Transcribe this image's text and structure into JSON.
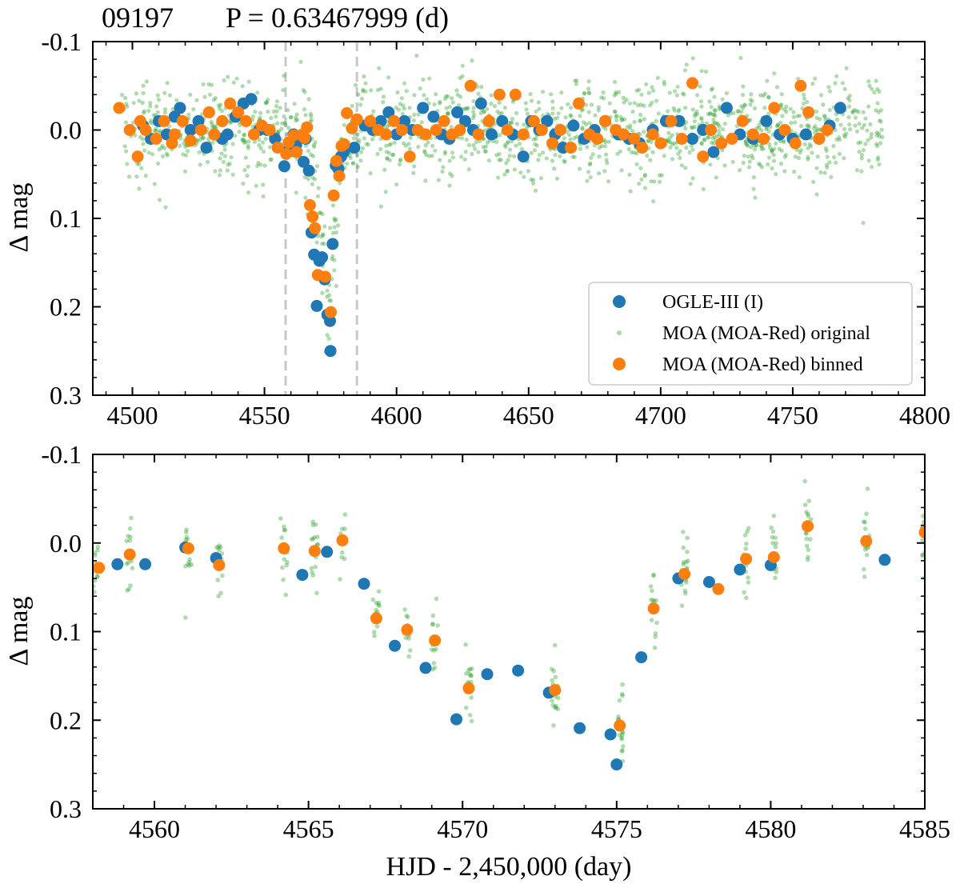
{
  "figure": {
    "title_id": "09197",
    "title_period": "P = 0.63467999 (d)"
  },
  "colors": {
    "ogle": "#1f77b4",
    "moa_original": "#2ca02c",
    "moa_binned": "#ff7f0e",
    "guide": "#c8c8c8"
  },
  "chart_data": [
    {
      "type": "scatter",
      "name": "full-range",
      "title": "09197     P = 0.63467999 (d)",
      "xlabel": "",
      "ylabel": "Δ mag",
      "xlim": [
        4485,
        4800
      ],
      "ylim": [
        -0.1,
        0.3
      ],
      "y_inverted": true,
      "xticks": [
        4500,
        4550,
        4600,
        4650,
        4700,
        4750,
        4800
      ],
      "xtick_labels": [
        "4500",
        "4550",
        "4600",
        "4650",
        "4700",
        "4750",
        "4800"
      ],
      "yticks": [
        -0.1,
        0.0,
        0.1,
        0.2,
        0.3
      ],
      "ytick_labels": [
        "-0.1",
        "0.0",
        "0.1",
        "0.2",
        "0.3"
      ],
      "guide_lines_x": [
        4558,
        4585
      ],
      "legend": {
        "position": "lower-right",
        "entries": [
          "OGLE-III (I)",
          "MOA (MOA-Red) original",
          "MOA (MOA-Red) binned"
        ]
      },
      "series": [
        {
          "name": "OGLE-III (I)",
          "color_key": "ogle",
          "x": [
            4504,
            4507,
            4510,
            4513,
            4516,
            4518,
            4522,
            4525,
            4528,
            4531,
            4534,
            4536,
            4539,
            4542,
            4545,
            4548,
            4551,
            4554,
            4557.5,
            4558.8,
            4559.7,
            4561,
            4562,
            4564.8,
            4565.6,
            4566.8,
            4567.8,
            4568.8,
            4569.8,
            4570.8,
            4571.8,
            4572.8,
            4573.8,
            4574.8,
            4575,
            4575.8,
            4577,
            4578,
            4579,
            4580,
            4584,
            4588,
            4591,
            4594,
            4597,
            4600,
            4603,
            4606,
            4610,
            4614,
            4617,
            4620,
            4623,
            4626,
            4629,
            4632,
            4636,
            4640,
            4644,
            4648,
            4651,
            4654,
            4657,
            4660,
            4663,
            4667,
            4671,
            4675,
            4679,
            4684,
            4688,
            4692,
            4697,
            4702,
            4707,
            4712,
            4716,
            4720,
            4725,
            4730,
            4735,
            4740,
            4745,
            4750,
            4755,
            4760,
            4764,
            4768
          ],
          "y": [
            -0.005,
            0.01,
            -0.01,
            0.005,
            -0.015,
            -0.025,
            0.0,
            -0.01,
            0.02,
            0.005,
            0.01,
            0.005,
            -0.015,
            -0.03,
            -0.035,
            0.0,
            0.0,
            0.01,
            0.041,
            0.024,
            0.024,
            0.005,
            0.017,
            0.036,
            0.01,
            0.046,
            0.116,
            0.141,
            0.199,
            0.148,
            0.144,
            0.169,
            0.209,
            0.216,
            0.25,
            0.129,
            0.04,
            0.044,
            0.03,
            0.025,
            0.02,
            -0.005,
            0.0,
            -0.01,
            -0.02,
            0.005,
            -0.01,
            0.0,
            -0.025,
            -0.015,
            0.005,
            0.01,
            -0.02,
            -0.01,
            0.0,
            -0.03,
            0.005,
            -0.01,
            0.005,
            0.03,
            -0.01,
            0.0,
            -0.01,
            0.005,
            0.02,
            -0.005,
            0.01,
            0.0,
            -0.01,
            0.005,
            0.01,
            0.015,
            0.0,
            -0.01,
            -0.01,
            0.01,
            0.0,
            0.025,
            -0.025,
            0.005,
            0.01,
            -0.01,
            0.005,
            0.01,
            0.005,
            0.01,
            -0.005,
            -0.025
          ]
        },
        {
          "name": "MOA (MOA-Red) original",
          "color_key": "moa_original",
          "generated": true,
          "xlim_data": [
            4496,
            4784
          ],
          "dip_center": 4574,
          "count": 1500,
          "seed": 7
        },
        {
          "name": "MOA (MOA-Red) binned",
          "color_key": "moa_binned",
          "x": [
            4495,
            4499,
            4502,
            4503,
            4505,
            4509,
            4512,
            4515,
            4516,
            4519,
            4522,
            4526,
            4529,
            4531,
            4534,
            4537,
            4540,
            4543,
            4546,
            4549,
            4552,
            4555,
            4558.2,
            4559.2,
            4561.1,
            4562.1,
            4564.2,
            4565.2,
            4566.1,
            4567.2,
            4568.2,
            4569.1,
            4570.2,
            4573,
            4575.1,
            4576.2,
            4577.2,
            4578.3,
            4579.2,
            4580.1,
            4581.2,
            4583.1,
            4585,
            4590,
            4593,
            4596,
            4599,
            4602,
            4605,
            4608,
            4611,
            4615,
            4618,
            4621,
            4624,
            4628,
            4631,
            4635,
            4639,
            4642,
            4645,
            4648,
            4652,
            4655,
            4659,
            4662,
            4666,
            4669,
            4673,
            4676,
            4679,
            4683,
            4686,
            4690,
            4693,
            4697,
            4700,
            4704,
            4708,
            4712,
            4716,
            4719,
            4723,
            4727,
            4731,
            4735,
            4739,
            4743,
            4747,
            4751,
            4753,
            4756,
            4760,
            4763
          ],
          "y": [
            -0.025,
            0.0,
            0.03,
            -0.01,
            0.0,
            0.01,
            -0.01,
            0.015,
            0.005,
            -0.01,
            0.012,
            0.0,
            -0.02,
            0.005,
            -0.01,
            -0.03,
            -0.02,
            -0.01,
            0.005,
            -0.005,
            0.0,
            0.02,
            0.027,
            0.014,
            0.006,
            0.025,
            0.006,
            0.009,
            -0.003,
            0.085,
            0.098,
            0.111,
            0.164,
            0.166,
            0.206,
            0.074,
            0.035,
            0.052,
            0.018,
            0.016,
            -0.019,
            -0.002,
            -0.012,
            -0.01,
            0.0,
            0.005,
            -0.01,
            0.0,
            0.03,
            0.0,
            0.005,
            0.0,
            -0.01,
            0.005,
            0.0,
            -0.05,
            0.005,
            -0.01,
            -0.04,
            0.0,
            -0.04,
            0.005,
            -0.01,
            0.0,
            0.015,
            0.0,
            0.02,
            -0.03,
            0.005,
            0.01,
            -0.01,
            0.0,
            0.005,
            0.01,
            0.02,
            0.005,
            0.015,
            -0.01,
            0.01,
            -0.053,
            0.03,
            0.0,
            0.015,
            0.01,
            -0.01,
            0.005,
            0.01,
            -0.025,
            0.0,
            0.015,
            -0.05,
            -0.02,
            0.01,
            0.0
          ]
        }
      ]
    },
    {
      "type": "scatter",
      "name": "zoom-eclipse",
      "title": "",
      "xlabel": "HJD - 2,450,000 (day)",
      "ylabel": "Δ mag",
      "xlim": [
        4558,
        4585
      ],
      "ylim": [
        -0.1,
        0.3
      ],
      "y_inverted": true,
      "xticks": [
        4560,
        4565,
        4570,
        4575,
        4580,
        4585
      ],
      "xtick_labels": [
        "4560",
        "4565",
        "4570",
        "4575",
        "4580",
        "4585"
      ],
      "yticks": [
        -0.1,
        0.0,
        0.1,
        0.2,
        0.3
      ],
      "ytick_labels": [
        "-0.1",
        "0.0",
        "0.1",
        "0.2",
        "0.3"
      ],
      "series": [
        {
          "name": "OGLE-III (I)",
          "color_key": "ogle",
          "x": [
            4558.8,
            4559.7,
            4561,
            4562,
            4564.8,
            4565.6,
            4566.8,
            4567.8,
            4568.8,
            4569.8,
            4570.8,
            4571.8,
            4572.8,
            4573.8,
            4574.8,
            4575,
            4575.8,
            4577,
            4578,
            4579,
            4580,
            4583.7
          ],
          "y": [
            0.024,
            0.024,
            0.005,
            0.017,
            0.036,
            0.01,
            0.046,
            0.116,
            0.141,
            0.199,
            0.148,
            0.144,
            0.169,
            0.209,
            0.216,
            0.25,
            0.129,
            0.04,
            0.044,
            0.03,
            0.025,
            0.019
          ]
        },
        {
          "name": "MOA (MOA-Red) original",
          "color_key": "moa_original",
          "generated": true,
          "clusters_x": [
            4558.1,
            4559.2,
            4561.1,
            4562.1,
            4564.2,
            4565.2,
            4566.1,
            4567.2,
            4568.2,
            4569.1,
            4570.2,
            4573,
            4575.1,
            4576.2,
            4577.2,
            4579.2,
            4580.1,
            4581.2,
            4583.1,
            4585
          ],
          "clusters_y": [
            0.027,
            0.013,
            0.006,
            0.025,
            0.006,
            0.009,
            -0.003,
            0.085,
            0.098,
            0.11,
            0.164,
            0.166,
            0.206,
            0.074,
            0.035,
            0.018,
            0.016,
            -0.019,
            -0.002,
            -0.012
          ],
          "seed": 11
        },
        {
          "name": "MOA (MOA-Red) binned",
          "color_key": "moa_binned",
          "x": [
            4558.2,
            4559.2,
            4561.1,
            4562.1,
            4564.2,
            4565.2,
            4566.1,
            4567.2,
            4568.2,
            4569.1,
            4570.2,
            4573,
            4575.1,
            4576.2,
            4577.2,
            4578.3,
            4579.2,
            4580.1,
            4581.2,
            4583.1,
            4585
          ],
          "y": [
            0.028,
            0.013,
            0.006,
            0.025,
            0.006,
            0.009,
            -0.003,
            0.085,
            0.098,
            0.11,
            0.164,
            0.166,
            0.206,
            0.074,
            0.035,
            0.052,
            0.018,
            0.016,
            -0.019,
            -0.002,
            -0.012
          ]
        }
      ]
    }
  ]
}
